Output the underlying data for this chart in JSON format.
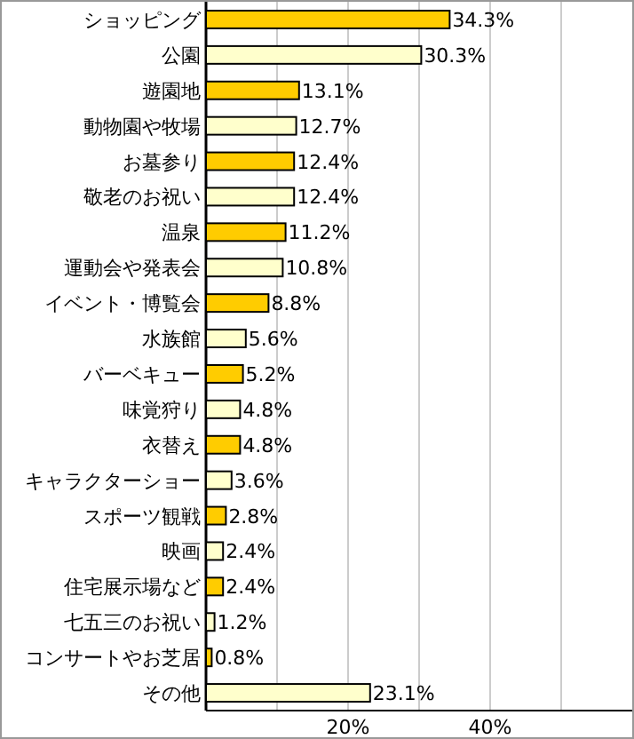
{
  "chart_data": {
    "type": "bar",
    "orientation": "horizontal",
    "categories": [
      "ショッピング",
      "公園",
      "遊園地",
      "動物園や牧場",
      "お墓参り",
      "敬老のお祝い",
      "温泉",
      "運動会や発表会",
      "イベント・博覧会",
      "水族館",
      "バーベキュー",
      "味覚狩り",
      "衣替え",
      "キャラクターショー",
      "スポーツ観戦",
      "映画",
      "住宅展示場など",
      "七五三のお祝い",
      "コンサートやお芝居",
      "その他"
    ],
    "values": [
      34.3,
      30.3,
      13.1,
      12.7,
      12.4,
      12.4,
      11.2,
      10.8,
      8.8,
      5.6,
      5.2,
      4.8,
      4.8,
      3.6,
      2.8,
      2.4,
      2.4,
      1.2,
      0.8,
      23.1
    ],
    "colors": [
      "#ffcc00",
      "#ffffcc",
      "#ffcc00",
      "#ffffcc",
      "#ffcc00",
      "#ffffcc",
      "#ffcc00",
      "#ffffcc",
      "#ffcc00",
      "#ffffcc",
      "#ffcc00",
      "#ffffcc",
      "#ffcc00",
      "#ffffcc",
      "#ffcc00",
      "#ffffcc",
      "#ffcc00",
      "#ffffcc",
      "#ffcc00",
      "#ffffcc"
    ],
    "value_labels": [
      "34.3%",
      "30.3%",
      "13.1%",
      "12.7%",
      "12.4%",
      "12.4%",
      "11.2%",
      "10.8%",
      "8.8%",
      "5.6%",
      "5.2%",
      "4.8%",
      "4.8%",
      "3.6%",
      "2.8%",
      "2.4%",
      "2.4%",
      "1.2%",
      "0.8%",
      "23.1%"
    ],
    "xlim": [
      0,
      60
    ],
    "xticks": [
      {
        "value": 10,
        "label": null
      },
      {
        "value": 20,
        "label": "20%"
      },
      {
        "value": 30,
        "label": null
      },
      {
        "value": 40,
        "label": "40%"
      },
      {
        "value": 50,
        "label": null
      }
    ],
    "grid": "x"
  }
}
